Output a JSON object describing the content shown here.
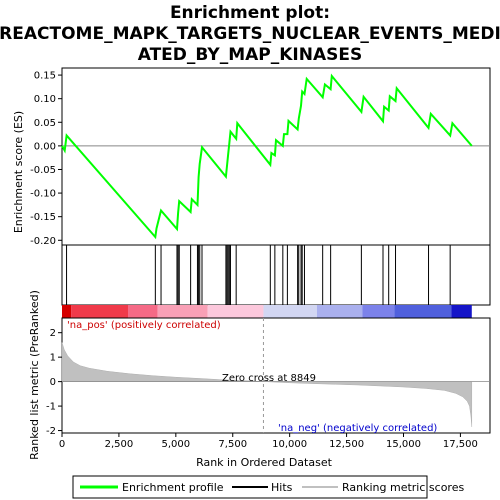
{
  "title_lines": [
    "Enrichment plot:",
    "REACTOME_MAPK_TARGETS_NUCLEAR_EVENTS_MEDI",
    "ATED_BY_MAP_KINASES"
  ],
  "chart_data": {
    "type": "line",
    "top_panel": {
      "ylabel": "Enrichment score (ES)",
      "yticks": [
        0.15,
        0.1,
        0.05,
        0.0,
        -0.05,
        -0.1,
        -0.15,
        -0.2
      ],
      "ylim": [
        -0.21,
        0.165
      ],
      "xlim": [
        0,
        18800
      ],
      "series": [
        {
          "name": "Enrichment profile",
          "color": "#00ff00",
          "points": [
            [
              0,
              0.0
            ],
            [
              120,
              -0.01
            ],
            [
              200,
              0.022
            ],
            [
              4100,
              -0.193
            ],
            [
              4150,
              -0.175
            ],
            [
              4350,
              -0.137
            ],
            [
              5050,
              -0.176
            ],
            [
              5100,
              -0.142
            ],
            [
              5150,
              -0.117
            ],
            [
              5650,
              -0.14
            ],
            [
              5700,
              -0.113
            ],
            [
              5950,
              -0.125
            ],
            [
              6000,
              -0.066
            ],
            [
              6050,
              -0.038
            ],
            [
              6150,
              -0.003
            ],
            [
              7200,
              -0.065
            ],
            [
              7250,
              -0.04
            ],
            [
              7300,
              -0.017
            ],
            [
              7350,
              0.005
            ],
            [
              7400,
              0.03
            ],
            [
              7650,
              0.015
            ],
            [
              7700,
              0.048
            ],
            [
              9150,
              -0.04
            ],
            [
              9200,
              -0.015
            ],
            [
              9350,
              -0.02
            ],
            [
              9400,
              0.012
            ],
            [
              9700,
              0.0
            ],
            [
              9750,
              0.025
            ],
            [
              9900,
              0.025
            ],
            [
              9950,
              0.053
            ],
            [
              10350,
              0.035
            ],
            [
              10400,
              0.058
            ],
            [
              10500,
              0.085
            ],
            [
              10550,
              0.115
            ],
            [
              10650,
              0.11
            ],
            [
              10750,
              0.142
            ],
            [
              11450,
              0.103
            ],
            [
              11550,
              0.13
            ],
            [
              11800,
              0.12
            ],
            [
              11850,
              0.148
            ],
            [
              13150,
              0.072
            ],
            [
              13250,
              0.104
            ],
            [
              14100,
              0.052
            ],
            [
              14150,
              0.083
            ],
            [
              14350,
              0.075
            ],
            [
              14400,
              0.105
            ],
            [
              14650,
              0.095
            ],
            [
              14700,
              0.122
            ],
            [
              16100,
              0.038
            ],
            [
              16200,
              0.068
            ],
            [
              17050,
              0.022
            ],
            [
              17150,
              0.048
            ],
            [
              18000,
              0.0
            ]
          ]
        }
      ]
    },
    "hits": [
      200,
      4100,
      4350,
      5050,
      5100,
      5150,
      5650,
      5950,
      6000,
      6050,
      6150,
      7200,
      7250,
      7300,
      7350,
      7400,
      7650,
      9150,
      9350,
      9700,
      9900,
      10350,
      10400,
      10500,
      10550,
      10650,
      11450,
      11800,
      13150,
      14100,
      14350,
      14650,
      16100,
      17050
    ],
    "labels": {
      "positive": "'na_pos' (positively correlated)",
      "negative": "'na_neg' (negatively correlated)"
    },
    "bottom_panel": {
      "ylabel": "Ranked list metric (PreRanked)",
      "xlabel": "Rank in Ordered Dataset",
      "yticks": [
        2,
        1,
        0,
        -1,
        -2
      ],
      "ylim": [
        -2.1,
        2.6
      ],
      "xticks": [
        0,
        2500,
        5000,
        7500,
        10000,
        12500,
        15000,
        17500
      ],
      "xtick_labels": [
        "0",
        "2,500",
        "5,000",
        "7,500",
        "10,000",
        "12,500",
        "15,000",
        "17,500"
      ],
      "zero_cross": 8849,
      "zero_cross_label": "Zero cross at 8849",
      "metric_curve": [
        [
          0,
          1.6
        ],
        [
          100,
          1.3
        ],
        [
          250,
          1.05
        ],
        [
          500,
          0.8
        ],
        [
          800,
          0.65
        ],
        [
          1200,
          0.55
        ],
        [
          2000,
          0.42
        ],
        [
          3000,
          0.32
        ],
        [
          4000,
          0.24
        ],
        [
          5000,
          0.18
        ],
        [
          6000,
          0.13
        ],
        [
          7000,
          0.08
        ],
        [
          8000,
          0.04
        ],
        [
          8849,
          0.0
        ],
        [
          10000,
          -0.05
        ],
        [
          11000,
          -0.08
        ],
        [
          12000,
          -0.11
        ],
        [
          13000,
          -0.14
        ],
        [
          14000,
          -0.18
        ],
        [
          15000,
          -0.22
        ],
        [
          16000,
          -0.28
        ],
        [
          16800,
          -0.36
        ],
        [
          17300,
          -0.48
        ],
        [
          17600,
          -0.62
        ],
        [
          17800,
          -0.8
        ],
        [
          17900,
          -1.0
        ],
        [
          17960,
          -1.4
        ],
        [
          18000,
          -1.85
        ]
      ]
    },
    "legend": [
      {
        "name": "Enrichment profile",
        "color": "#00ff00"
      },
      {
        "name": "Hits",
        "color": "#000000"
      },
      {
        "name": "Ranking metric scores",
        "color": "#c0c0c0"
      }
    ]
  }
}
